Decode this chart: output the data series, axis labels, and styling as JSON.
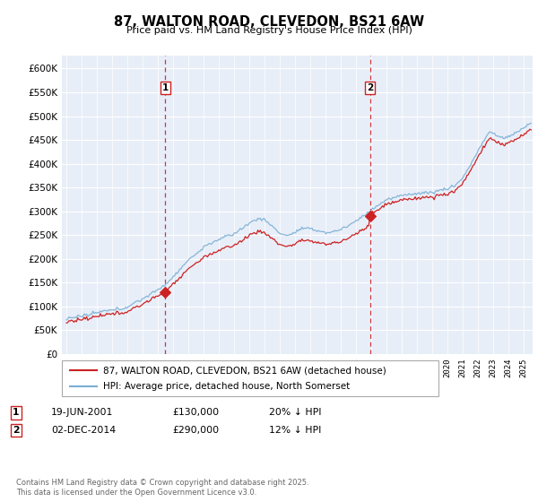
{
  "title": "87, WALTON ROAD, CLEVEDON, BS21 6AW",
  "subtitle": "Price paid vs. HM Land Registry's House Price Index (HPI)",
  "ylim": [
    0,
    620000
  ],
  "xlim_start": 1994.7,
  "xlim_end": 2025.6,
  "sale1_x": 2001.47,
  "sale1_y": 130000,
  "sale1_label": "1",
  "sale2_x": 2014.92,
  "sale2_y": 290000,
  "sale2_label": "2",
  "legend_line1": "87, WALTON ROAD, CLEVEDON, BS21 6AW (detached house)",
  "legend_line2": "HPI: Average price, detached house, North Somerset",
  "ann1_date": "19-JUN-2001",
  "ann1_price": "£130,000",
  "ann1_pct": "20% ↓ HPI",
  "ann2_date": "02-DEC-2014",
  "ann2_price": "£290,000",
  "ann2_pct": "12% ↓ HPI",
  "footer": "Contains HM Land Registry data © Crown copyright and database right 2025.\nThis data is licensed under the Open Government Licence v3.0.",
  "hpi_color": "#7bafd4",
  "sale_color": "#cc2222",
  "vline_color": "#cc2222",
  "bg_color": "#e8eef8",
  "grid_color": "#ffffff"
}
